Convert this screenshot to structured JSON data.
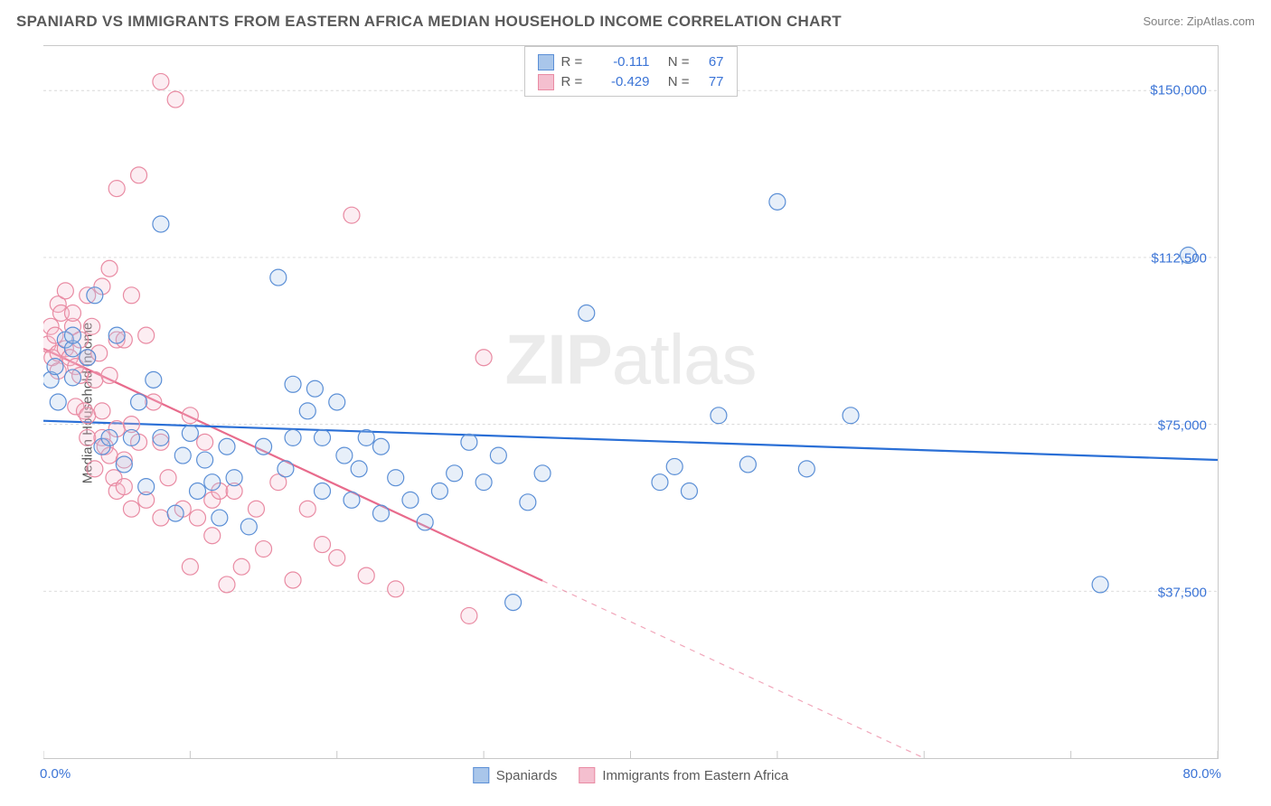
{
  "title": "SPANIARD VS IMMIGRANTS FROM EASTERN AFRICA MEDIAN HOUSEHOLD INCOME CORRELATION CHART",
  "source": "Source: ZipAtlas.com",
  "ylabel": "Median Household Income",
  "watermark_zip": "ZIP",
  "watermark_atlas": "atlas",
  "chart": {
    "type": "scatter",
    "background_color": "#ffffff",
    "grid_color": "#d8d8d8",
    "border_color": "#c8c8c8",
    "xlim": [
      0,
      80
    ],
    "ylim": [
      0,
      160000
    ],
    "x_ticks": [
      0,
      10,
      20,
      30,
      40,
      50,
      60,
      70,
      80
    ],
    "y_gridlines": [
      37500,
      75000,
      112500,
      150000
    ],
    "y_tick_labels": [
      "$37,500",
      "$75,000",
      "$112,500",
      "$150,000"
    ],
    "x_min_label": "0.0%",
    "x_max_label": "80.0%",
    "marker_radius": 9,
    "marker_stroke_width": 1.2,
    "marker_fill_opacity": 0.28,
    "line_width": 2.2
  },
  "series": [
    {
      "key": "spaniards",
      "label": "Spaniards",
      "color_stroke": "#5b8fd6",
      "color_fill": "#a9c6ea",
      "line_color": "#2a6fd6",
      "R_label": "R =",
      "R_value": "-0.111",
      "N_label": "N =",
      "N_value": "67",
      "trend": {
        "x1": 0,
        "y1": 75800,
        "x2": 80,
        "y2": 67000
      },
      "points": [
        [
          0.5,
          85000
        ],
        [
          0.8,
          88000
        ],
        [
          1.0,
          80000
        ],
        [
          1.5,
          94000
        ],
        [
          2.0,
          92000
        ],
        [
          2.0,
          95000
        ],
        [
          2.0,
          85500
        ],
        [
          3.0,
          90000
        ],
        [
          3.5,
          104000
        ],
        [
          4.0,
          70000
        ],
        [
          4.5,
          72000
        ],
        [
          5.0,
          95000
        ],
        [
          5.5,
          66000
        ],
        [
          6.0,
          72000
        ],
        [
          6.5,
          80000
        ],
        [
          7.0,
          61000
        ],
        [
          7.5,
          85000
        ],
        [
          8.0,
          120000
        ],
        [
          8.0,
          72000
        ],
        [
          9.0,
          55000
        ],
        [
          9.5,
          68000
        ],
        [
          10.0,
          73000
        ],
        [
          10.5,
          60000
        ],
        [
          11.0,
          67000
        ],
        [
          11.5,
          62000
        ],
        [
          12.0,
          54000
        ],
        [
          12.5,
          70000
        ],
        [
          13.0,
          63000
        ],
        [
          14.0,
          52000
        ],
        [
          15.0,
          70000
        ],
        [
          16.0,
          108000
        ],
        [
          16.5,
          65000
        ],
        [
          17.0,
          84000
        ],
        [
          17.0,
          72000
        ],
        [
          18.0,
          78000
        ],
        [
          18.5,
          83000
        ],
        [
          19.0,
          72000
        ],
        [
          19.0,
          60000
        ],
        [
          20.0,
          80000
        ],
        [
          20.5,
          68000
        ],
        [
          21.0,
          58000
        ],
        [
          21.5,
          65000
        ],
        [
          22.0,
          72000
        ],
        [
          23.0,
          55000
        ],
        [
          23.0,
          70000
        ],
        [
          24.0,
          63000
        ],
        [
          25.0,
          58000
        ],
        [
          26.0,
          53000
        ],
        [
          27.0,
          60000
        ],
        [
          28.0,
          64000
        ],
        [
          29.0,
          71000
        ],
        [
          30.0,
          62000
        ],
        [
          31.0,
          68000
        ],
        [
          32.0,
          35000
        ],
        [
          33.0,
          57500
        ],
        [
          34.0,
          64000
        ],
        [
          37.0,
          100000
        ],
        [
          42.0,
          62000
        ],
        [
          43.0,
          65500
        ],
        [
          44.0,
          60000
        ],
        [
          46.0,
          77000
        ],
        [
          48.0,
          66000
        ],
        [
          50.0,
          125000
        ],
        [
          52.0,
          65000
        ],
        [
          55.0,
          77000
        ],
        [
          72.0,
          39000
        ],
        [
          78.0,
          113000
        ]
      ]
    },
    {
      "key": "eafrica",
      "label": "Immigrants from Eastern Africa",
      "color_stroke": "#e98ba3",
      "color_fill": "#f4bfcf",
      "line_color": "#e86b8c",
      "R_label": "R =",
      "R_value": "-0.429",
      "N_label": "N =",
      "N_value": "77",
      "trend": {
        "x1": 0,
        "y1": 92000,
        "x2": 60,
        "y2": 0
      },
      "trend_solid_until_x": 34,
      "points": [
        [
          0.3,
          93000
        ],
        [
          0.5,
          97000
        ],
        [
          0.6,
          90000
        ],
        [
          0.8,
          95000
        ],
        [
          1.0,
          102000
        ],
        [
          1.0,
          91000
        ],
        [
          1.0,
          87000
        ],
        [
          1.2,
          100000
        ],
        [
          1.5,
          105000
        ],
        [
          1.5,
          92000
        ],
        [
          1.8,
          90000
        ],
        [
          2.0,
          97000
        ],
        [
          2.0,
          100000
        ],
        [
          2.2,
          88000
        ],
        [
          2.2,
          79000
        ],
        [
          2.5,
          94000
        ],
        [
          2.5,
          86000
        ],
        [
          2.8,
          78000
        ],
        [
          3.0,
          104000
        ],
        [
          3.0,
          90000
        ],
        [
          3.0,
          77000
        ],
        [
          3.0,
          72000
        ],
        [
          3.3,
          97000
        ],
        [
          3.5,
          85000
        ],
        [
          3.5,
          65000
        ],
        [
          3.8,
          91000
        ],
        [
          4.0,
          106000
        ],
        [
          4.0,
          78000
        ],
        [
          4.0,
          72000
        ],
        [
          4.2,
          70000
        ],
        [
          4.5,
          110000
        ],
        [
          4.5,
          86000
        ],
        [
          4.5,
          68000
        ],
        [
          4.8,
          63000
        ],
        [
          5.0,
          128000
        ],
        [
          5.0,
          94000
        ],
        [
          5.0,
          74000
        ],
        [
          5.0,
          60000
        ],
        [
          5.5,
          94000
        ],
        [
          5.5,
          67000
        ],
        [
          5.5,
          61000
        ],
        [
          6.0,
          104000
        ],
        [
          6.0,
          75000
        ],
        [
          6.0,
          56000
        ],
        [
          6.5,
          131000
        ],
        [
          6.5,
          71000
        ],
        [
          7.0,
          95000
        ],
        [
          7.0,
          58000
        ],
        [
          7.5,
          80000
        ],
        [
          8.0,
          152000
        ],
        [
          8.0,
          71000
        ],
        [
          8.0,
          54000
        ],
        [
          8.5,
          63000
        ],
        [
          9.0,
          148000
        ],
        [
          9.5,
          56000
        ],
        [
          10.0,
          77000
        ],
        [
          10.0,
          43000
        ],
        [
          10.5,
          54000
        ],
        [
          11.0,
          71000
        ],
        [
          11.5,
          58000
        ],
        [
          11.5,
          50000
        ],
        [
          12.0,
          60000
        ],
        [
          12.5,
          39000
        ],
        [
          13.0,
          60000
        ],
        [
          13.5,
          43000
        ],
        [
          14.5,
          56000
        ],
        [
          15.0,
          47000
        ],
        [
          16.0,
          62000
        ],
        [
          17.0,
          40000
        ],
        [
          18.0,
          56000
        ],
        [
          20.0,
          45000
        ],
        [
          21.0,
          122000
        ],
        [
          22.0,
          41000
        ],
        [
          29.0,
          32000
        ],
        [
          30.0,
          90000
        ],
        [
          24.0,
          38000
        ],
        [
          19.0,
          48000
        ]
      ]
    }
  ],
  "legend_bottom": [
    {
      "label": "Spaniards",
      "stroke": "#5b8fd6",
      "fill": "#a9c6ea"
    },
    {
      "label": "Immigrants from Eastern Africa",
      "stroke": "#e98ba3",
      "fill": "#f4bfcf"
    }
  ]
}
